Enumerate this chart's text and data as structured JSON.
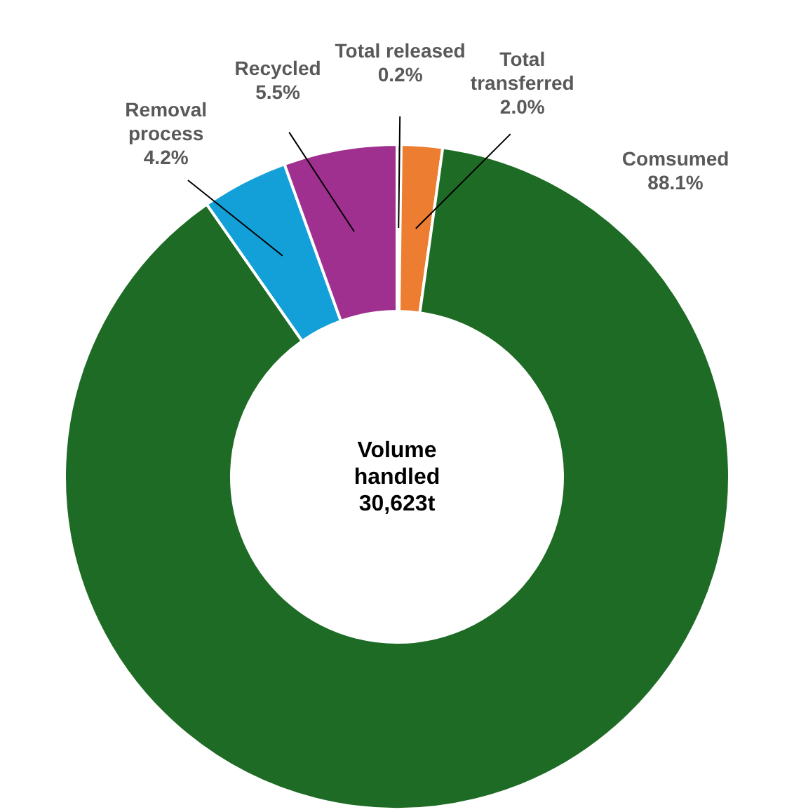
{
  "chart_data": {
    "type": "donut",
    "categories": [
      "Total released",
      "Total transferred",
      "Comsumed",
      "Removal process",
      "Recycled"
    ],
    "values": [
      0.2,
      2.0,
      88.1,
      4.2,
      5.5
    ],
    "colors": [
      "#b0b0b0",
      "#ed7d31",
      "#1e6b25",
      "#13a0d8",
      "#a0308f"
    ],
    "value_labels": [
      "0.2%",
      "2.0%",
      "88.1%",
      "4.2%",
      "5.5%"
    ],
    "annotations": [
      "Volume handled 30,623t"
    ]
  }
}
